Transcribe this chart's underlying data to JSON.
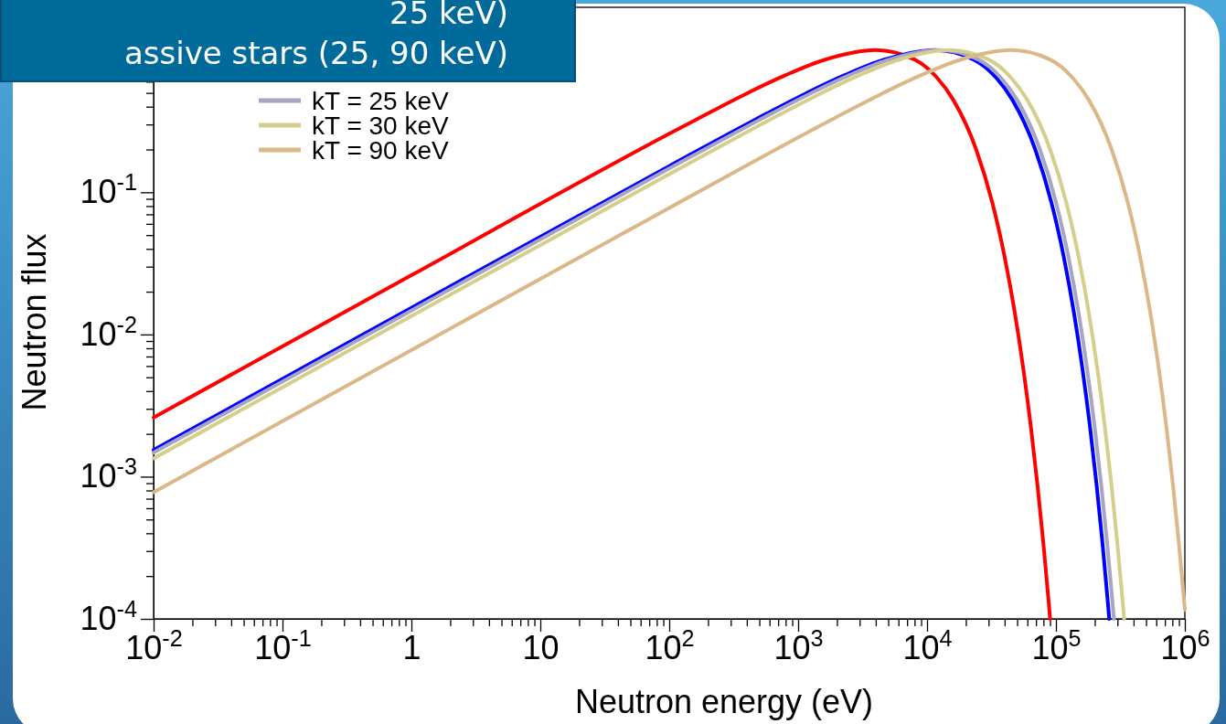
{
  "chart_data": {
    "type": "line",
    "annotations": [
      "25 keV)",
      "assive stars (25, 90 keV)"
    ],
    "xlabel": "Neutron energy (eV)",
    "ylabel": "Neutron flux",
    "log": "xy",
    "grid": false,
    "legend": "top left",
    "marker": "none",
    "line_style": "solid",
    "xlim": [
      0.01,
      1000000
    ],
    "ylim": [
      0.0001,
      2
    ],
    "xticks": [
      {
        "value": 0.01,
        "label": "10$^{-2}$"
      },
      {
        "value": 0.02,
        "label": null
      },
      {
        "value": 0.03,
        "label": null
      },
      {
        "value": 0.04,
        "label": null
      },
      {
        "value": 0.05,
        "label": null
      },
      {
        "value": 0.06,
        "label": null
      },
      {
        "value": 0.07,
        "label": null
      },
      {
        "value": 0.08,
        "label": null
      },
      {
        "value": 0.09,
        "label": null
      },
      {
        "value": 0.1,
        "label": "10$^{-1}$"
      },
      {
        "value": 0.2,
        "label": null
      },
      {
        "value": 0.3,
        "label": null
      },
      {
        "value": 0.4,
        "label": null
      },
      {
        "value": 0.5,
        "label": null
      },
      {
        "value": 0.6,
        "label": null
      },
      {
        "value": 0.7,
        "label": null
      },
      {
        "value": 0.8,
        "label": null
      },
      {
        "value": 0.9,
        "label": null
      },
      {
        "value": 1,
        "label": "1"
      },
      {
        "value": 2,
        "label": null
      },
      {
        "value": 3,
        "label": null
      },
      {
        "value": 4,
        "label": null
      },
      {
        "value": 5,
        "label": null
      },
      {
        "value": 6,
        "label": null
      },
      {
        "value": 7,
        "label": null
      },
      {
        "value": 8,
        "label": null
      },
      {
        "value": 9,
        "label": null
      },
      {
        "value": 10,
        "label": "10"
      },
      {
        "value": 20,
        "label": null
      },
      {
        "value": 30,
        "label": null
      },
      {
        "value": 40,
        "label": null
      },
      {
        "value": 50,
        "label": null
      },
      {
        "value": 60,
        "label": null
      },
      {
        "value": 70,
        "label": null
      },
      {
        "value": 80,
        "label": null
      },
      {
        "value": 90,
        "label": null
      },
      {
        "value": 100,
        "label": "10$^{2}$"
      },
      {
        "value": 200,
        "label": null
      },
      {
        "value": 300,
        "label": null
      },
      {
        "value": 400,
        "label": null
      },
      {
        "value": 500,
        "label": null
      },
      {
        "value": 600,
        "label": null
      },
      {
        "value": 700,
        "label": null
      },
      {
        "value": 800,
        "label": null
      },
      {
        "value": 900,
        "label": null
      },
      {
        "value": 1000,
        "label": "10$^{3}$"
      },
      {
        "value": 2000,
        "label": null
      },
      {
        "value": 3000,
        "label": null
      },
      {
        "value": 4000,
        "label": null
      },
      {
        "value": 5000,
        "label": null
      },
      {
        "value": 6000,
        "label": null
      },
      {
        "value": 7000,
        "label": null
      },
      {
        "value": 8000,
        "label": null
      },
      {
        "value": 9000,
        "label": null
      },
      {
        "value": 10000,
        "label": "10$^{4}$"
      },
      {
        "value": 20000,
        "label": null
      },
      {
        "value": 30000,
        "label": null
      },
      {
        "value": 40000,
        "label": null
      },
      {
        "value": 50000,
        "label": null
      },
      {
        "value": 60000,
        "label": null
      },
      {
        "value": 70000,
        "label": null
      },
      {
        "value": 80000,
        "label": null
      },
      {
        "value": 90000,
        "label": null
      },
      {
        "value": 100000,
        "label": "10$^{5}$"
      },
      {
        "value": 200000,
        "label": null
      },
      {
        "value": 300000,
        "label": null
      },
      {
        "value": 400000,
        "label": null
      },
      {
        "value": 500000,
        "label": null
      },
      {
        "value": 600000,
        "label": null
      },
      {
        "value": 700000,
        "label": null
      },
      {
        "value": 800000,
        "label": null
      },
      {
        "value": 900000,
        "label": null
      },
      {
        "value": 1000000,
        "label": "10$^{6}$"
      }
    ],
    "yticks": [
      {
        "value": 0.0001,
        "label": "10$^{-4}$"
      },
      {
        "value": 0.0002,
        "label": null
      },
      {
        "value": 0.0003,
        "label": null
      },
      {
        "value": 0.0004,
        "label": null
      },
      {
        "value": 0.0005,
        "label": null
      },
      {
        "value": 0.0006,
        "label": null
      },
      {
        "value": 0.0007,
        "label": null
      },
      {
        "value": 0.0008,
        "label": null
      },
      {
        "value": 0.0009,
        "label": null
      },
      {
        "value": 0.001,
        "label": "10$^{-3}$"
      },
      {
        "value": 0.002,
        "label": null
      },
      {
        "value": 0.003,
        "label": null
      },
      {
        "value": 0.004,
        "label": null
      },
      {
        "value": 0.005,
        "label": null
      },
      {
        "value": 0.006,
        "label": null
      },
      {
        "value": 0.007,
        "label": null
      },
      {
        "value": 0.008,
        "label": null
      },
      {
        "value": 0.009,
        "label": null
      },
      {
        "value": 0.01,
        "label": "10$^{-2}$"
      },
      {
        "value": 0.02,
        "label": null
      },
      {
        "value": 0.03,
        "label": null
      },
      {
        "value": 0.04,
        "label": null
      },
      {
        "value": 0.05,
        "label": null
      },
      {
        "value": 0.06,
        "label": null
      },
      {
        "value": 0.07,
        "label": null
      },
      {
        "value": 0.08,
        "label": null
      },
      {
        "value": 0.09,
        "label": null
      },
      {
        "value": 0.1,
        "label": "10$^{-1}$"
      },
      {
        "value": 0.2,
        "label": null
      },
      {
        "value": 0.3,
        "label": null
      },
      {
        "value": 0.4,
        "label": null
      },
      {
        "value": 0.5,
        "label": null
      },
      {
        "value": 0.6,
        "label": null
      },
      {
        "value": 0.7,
        "label": null
      },
      {
        "value": 0.8,
        "label": null
      },
      {
        "value": 0.9,
        "label": null
      }
    ],
    "series": [
      {
        "color": "#ff0000",
        "x": [
          0.01,
          1,
          100,
          160,
          400,
          800,
          1600,
          4000,
          8000,
          12000,
          16000,
          24000,
          32000,
          40000,
          48000,
          56000,
          64000,
          72000,
          80000,
          88000,
          90080
        ],
        "values": [
          0.00261,
          0.0261,
          0.258,
          0.323,
          0.496,
          0.667,
          0.854,
          1,
          0.858,
          0.637,
          0.446,
          0.201,
          0.0855,
          0.0351,
          0.01416,
          0.005625,
          0.002212,
          0.000863,
          0.000335,
          0.000129,
          0.0001
        ]
      },
      {
        "name": "kT = 25 keV",
        "color": "#a8a4c4",
        "x": [
          0.01,
          1,
          100,
          500,
          1250,
          2500,
          5000,
          12500,
          25000,
          37500,
          50000,
          75000,
          100000,
          125000,
          150000,
          175000,
          200000,
          225000,
          250000,
          275000,
          281500
        ],
        "values": [
          0.001475,
          0.01475,
          0.147,
          0.323,
          0.496,
          0.667,
          0.854,
          1,
          0.858,
          0.637,
          0.446,
          0.201,
          0.0855,
          0.0351,
          0.01416,
          0.005625,
          0.002212,
          0.000863,
          0.000335,
          0.000129,
          0.0001
        ]
      },
      {
        "name": "kT = 30 keV",
        "color": "#d4d08c",
        "x": [
          0.01,
          1,
          100,
          600,
          1500,
          3000,
          6000,
          15000,
          30000,
          45000,
          60000,
          90000,
          120000,
          150000,
          180000,
          210000,
          240000,
          270000,
          300000,
          330000,
          337800
        ],
        "values": [
          0.001346,
          0.01346,
          0.134,
          0.323,
          0.496,
          0.667,
          0.854,
          1,
          0.858,
          0.637,
          0.446,
          0.201,
          0.0855,
          0.0351,
          0.01416,
          0.005625,
          0.002212,
          0.000863,
          0.000335,
          0.000129,
          0.0001
        ]
      },
      {
        "name": "kT = 90 keV",
        "color": "#dcb888",
        "x": [
          0.01,
          1,
          100,
          1800,
          4500,
          9000,
          18000,
          45000,
          90000,
          135000,
          180000,
          270000,
          360000,
          450000,
          540000,
          630000,
          720000,
          810000,
          900000,
          990000,
          1000000
        ],
        "values": [
          0.000777,
          0.00777,
          0.0777,
          0.323,
          0.496,
          0.667,
          0.854,
          1,
          0.858,
          0.637,
          0.446,
          0.201,
          0.0855,
          0.0351,
          0.01416,
          0.005625,
          0.002212,
          0.000863,
          0.000335,
          0.000129,
          0.000116
        ]
      },
      {
        "color": "#0000ff",
        "x": [
          0.01,
          1,
          100,
          460,
          1150,
          2300,
          4600,
          11500,
          23000,
          34500,
          46000,
          69000,
          92000,
          115000,
          138000,
          161000,
          184000,
          207000,
          230000,
          253000,
          258980
        ],
        "values": [
          0.00154,
          0.0154,
          0.153,
          0.323,
          0.496,
          0.667,
          0.854,
          1,
          0.858,
          0.637,
          0.446,
          0.201,
          0.0855,
          0.0351,
          0.01416,
          0.005625,
          0.002212,
          0.000863,
          0.000335,
          0.000129,
          0.0001
        ]
      }
    ]
  }
}
